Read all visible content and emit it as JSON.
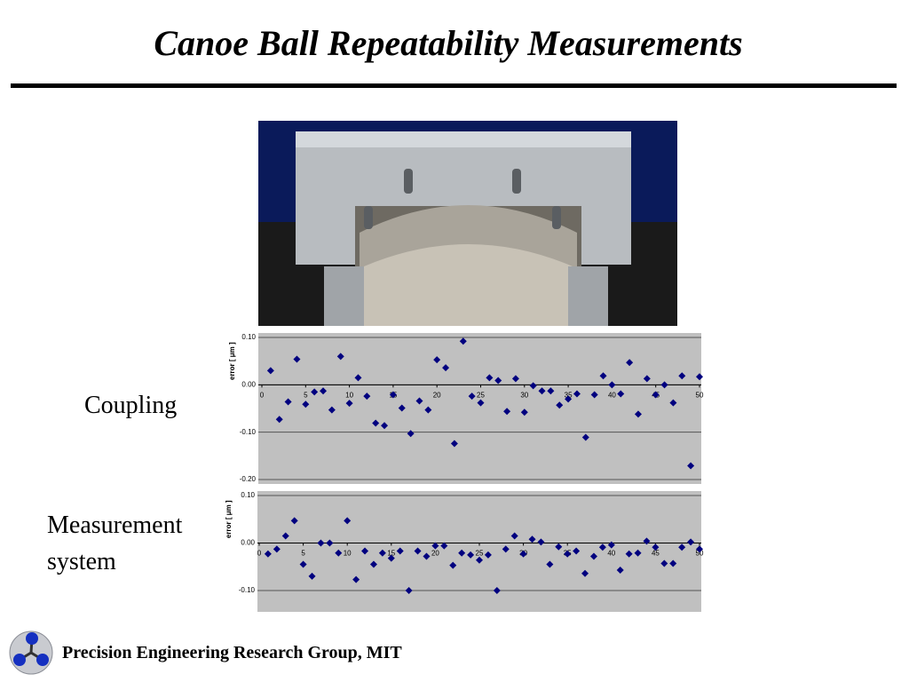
{
  "title": "Canoe Ball Repeatability Measurements",
  "labels": [
    "Coupling",
    "Measurement",
    "system"
  ],
  "footer": "Precision Engineering Research Group, MIT",
  "chart_data": [
    {
      "type": "scatter",
      "y_label": "error [ μm ]",
      "color": "#00007f",
      "grid": true,
      "x": [
        1,
        2,
        3,
        4,
        5,
        6,
        7,
        8,
        9,
        10,
        11,
        12,
        13,
        14,
        15,
        16,
        17,
        18,
        19,
        20,
        21,
        22,
        23,
        24,
        25,
        26,
        27,
        28,
        29,
        30,
        31,
        32,
        33,
        34,
        35,
        36,
        37,
        38,
        39,
        40,
        41,
        42,
        43,
        44,
        45,
        46,
        47,
        48,
        49,
        50
      ],
      "values": [
        0.03,
        -0.073,
        -0.036,
        0.054,
        -0.041,
        -0.015,
        -0.013,
        -0.053,
        0.06,
        -0.039,
        0.015,
        -0.024,
        -0.081,
        -0.086,
        -0.021,
        -0.049,
        -0.103,
        -0.034,
        -0.053,
        0.053,
        0.036,
        -0.124,
        0.092,
        -0.024,
        -0.038,
        0.015,
        0.009,
        -0.056,
        0.013,
        -0.058,
        -0.002,
        -0.013,
        -0.013,
        -0.043,
        -0.03,
        -0.019,
        -0.111,
        -0.021,
        0.019,
        0.0,
        -0.019,
        0.047,
        -0.062,
        0.013,
        -0.021,
        0.0,
        -0.038,
        0.019,
        -0.171,
        0.017
      ],
      "xlim": [
        0,
        50
      ],
      "xticks": [
        0,
        5,
        10,
        15,
        20,
        25,
        30,
        35,
        40,
        45,
        50
      ],
      "ylim": [
        -0.2,
        0.1
      ],
      "yticks": [
        {
          "value": 0.1,
          "label": "0.10"
        },
        {
          "value": 0,
          "label": "0.00"
        },
        {
          "value": -0.1,
          "label": "-0.10"
        },
        {
          "value": -0.2,
          "label": "-0.20"
        }
      ]
    },
    {
      "type": "scatter",
      "y_label": "error [ μm ]",
      "color": "#00007f",
      "grid": true,
      "x": [
        1,
        2,
        3,
        4,
        5,
        6,
        7,
        8,
        9,
        10,
        11,
        12,
        13,
        14,
        15,
        16,
        17,
        18,
        19,
        20,
        21,
        22,
        23,
        24,
        25,
        26,
        27,
        28,
        29,
        30,
        31,
        32,
        33,
        34,
        35,
        36,
        37,
        38,
        39,
        40,
        41,
        42,
        43,
        44,
        45,
        46,
        47,
        48,
        49,
        50
      ],
      "values": [
        -0.023,
        -0.013,
        0.015,
        0.047,
        -0.045,
        -0.07,
        0.0,
        0.0,
        -0.021,
        0.047,
        -0.077,
        -0.017,
        -0.045,
        -0.021,
        -0.032,
        -0.017,
        -0.1,
        -0.017,
        -0.028,
        -0.006,
        -0.006,
        -0.047,
        -0.021,
        -0.025,
        -0.036,
        -0.025,
        -0.1,
        -0.013,
        0.015,
        -0.023,
        0.008,
        0.002,
        -0.045,
        -0.008,
        -0.023,
        -0.017,
        -0.064,
        -0.028,
        -0.009,
        -0.004,
        -0.057,
        -0.023,
        -0.021,
        0.004,
        -0.009,
        -0.043,
        -0.043,
        -0.009,
        0.002,
        -0.013
      ],
      "xlim": [
        0,
        50
      ],
      "xticks": [
        0,
        5,
        10,
        15,
        20,
        25,
        30,
        35,
        40,
        45,
        50
      ],
      "ylim": [
        -0.145,
        0.1
      ],
      "yticks": [
        {
          "value": 0.1,
          "label": "0.10"
        },
        {
          "value": 0,
          "label": "0.00"
        },
        {
          "value": -0.1,
          "label": "-0.10"
        }
      ]
    }
  ]
}
